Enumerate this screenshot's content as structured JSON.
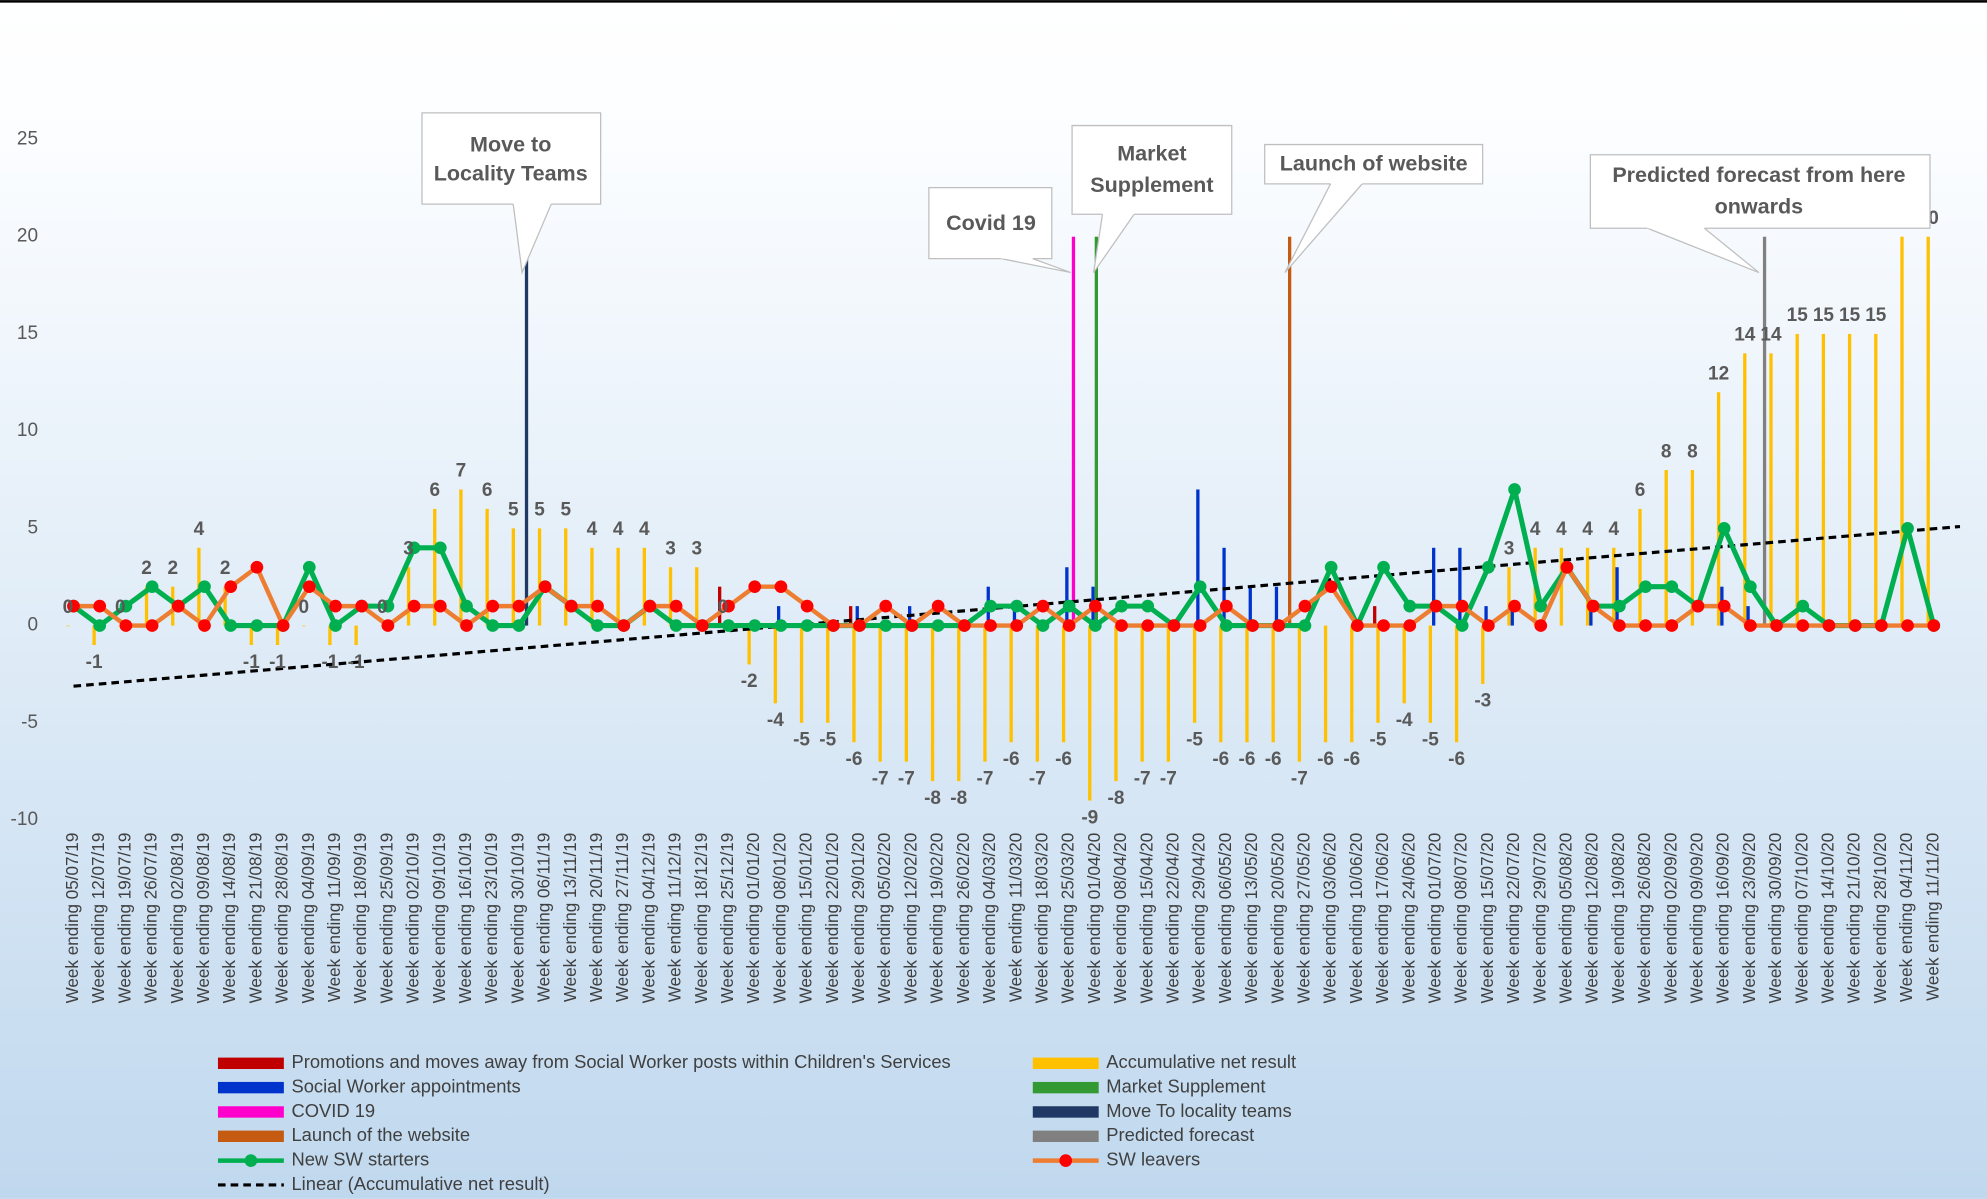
{
  "chart_data": {
    "type": "combo",
    "ylim": [
      -10,
      25
    ],
    "yticks": [
      -10,
      -5,
      0,
      5,
      10,
      15,
      20,
      25
    ],
    "grid": false,
    "categories": [
      "Week ending 05/07/19",
      "Week ending 12/07/19",
      "Week ending 19/07/19",
      "Week ending 26/07/19",
      "Week ending 02/08/19",
      "Week ending 09/08/19",
      "Week ending 14/08/19",
      "Week ending 21/08/19",
      "Week ending 28/08/19",
      "Week ending 04/09/19",
      "Week ending 11/09/19",
      "Week ending 18/09/19",
      "Week ending 25/09/19",
      "Week ending 02/10/19",
      "Week ending 09/10/19",
      "Week ending 16/10/19",
      "Week ending 23/10/19",
      "Week ending 30/10/19",
      "Week ending 06/11/19",
      "Week ending 13/11/19",
      "Week ending 20/11/19",
      "Week ending 27/11/19",
      "Week ending 04/12/19",
      "Week ending 11/12/19",
      "Week ending 18/12/19",
      "Week ending 25/12/19",
      "Week ending 01/01/20",
      "Week ending 08/01/20",
      "Week ending 15/01/20",
      "Week ending 22/01/20",
      "Week ending 29/01/20",
      "Week ending 05/02/20",
      "Week ending 12/02/20",
      "Week ending 19/02/20",
      "Week ending 26/02/20",
      "Week ending 04/03/20",
      "Week ending 11/03/20",
      "Week ending 18/03/20",
      "Week ending 25/03/20",
      "Week ending 01/04/20",
      "Week ending 08/04/20",
      "Week ending 15/04/20",
      "Week ending 22/04/20",
      "Week ending 29/04/20",
      "Week ending 06/05/20",
      "Week ending 13/05/20",
      "Week ending 20/05/20",
      "Week ending 27/05/20",
      "Week ending 03/06/20",
      "Week ending 10/06/20",
      "Week ending 17/06/20",
      "Week ending 24/06/20",
      "Week ending 01/07/20",
      "Week ending 08/07/20",
      "Week ending 15/07/20",
      "Week ending 22/07/20",
      "Week ending 29/07/20",
      "Week ending 05/08/20",
      "Week ending 12/08/20",
      "Week ending 19/08/20",
      "Week ending 26/08/20",
      "Week ending 02/09/20",
      "Week ending 09/09/20",
      "Week ending 16/09/20",
      "Week ending 23/09/20",
      "Week ending 30/09/20",
      "Week ending 07/10/20",
      "Week ending 14/10/20",
      "Week ending 21/10/20",
      "Week ending 28/10/20",
      "Week ending 04/11/20",
      "Week ending 11/11/20"
    ],
    "series": [
      {
        "name": "Promotions and moves away from Social Worker posts within Children's Services",
        "type": "bar",
        "color": "#c00000",
        "values": [
          null,
          null,
          null,
          null,
          null,
          null,
          null,
          null,
          null,
          null,
          null,
          null,
          null,
          null,
          null,
          null,
          null,
          null,
          null,
          null,
          null,
          null,
          null,
          null,
          null,
          2,
          null,
          null,
          null,
          null,
          1,
          null,
          null,
          null,
          null,
          null,
          null,
          null,
          null,
          null,
          null,
          null,
          null,
          null,
          null,
          null,
          null,
          null,
          null,
          null,
          1,
          null,
          null,
          null,
          null,
          null,
          null,
          null,
          null,
          null,
          null,
          null,
          null,
          null,
          null,
          null,
          null,
          null,
          null,
          null,
          null,
          null
        ]
      },
      {
        "name": "Accumulative net result",
        "type": "bar",
        "color": "#ffc000",
        "data_labels": true,
        "values": [
          0,
          -1,
          0,
          2,
          2,
          4,
          2,
          -1,
          -1,
          0,
          -1,
          -1,
          0,
          3,
          6,
          7,
          6,
          5,
          5,
          5,
          4,
          4,
          4,
          3,
          3,
          0,
          -2,
          -4,
          -5,
          -5,
          -6,
          -7,
          -7,
          -8,
          -8,
          -7,
          -6,
          -7,
          -6,
          -9,
          -8,
          -7,
          -7,
          -5,
          -6,
          -6,
          -6,
          -7,
          -6,
          -6,
          -5,
          -4,
          -5,
          -6,
          -3,
          3,
          4,
          4,
          4,
          4,
          6,
          8,
          8,
          12,
          14,
          14,
          15,
          15,
          15,
          15,
          20,
          20
        ]
      },
      {
        "name": "Social Worker appointments",
        "type": "bar",
        "color": "#0033cc",
        "values": [
          null,
          null,
          null,
          null,
          null,
          null,
          null,
          null,
          null,
          null,
          null,
          null,
          null,
          null,
          null,
          null,
          null,
          null,
          null,
          null,
          null,
          null,
          null,
          null,
          null,
          null,
          null,
          1,
          null,
          null,
          1,
          null,
          1,
          null,
          null,
          2,
          1,
          null,
          3,
          2,
          null,
          null,
          null,
          7,
          4,
          2,
          2,
          null,
          null,
          null,
          null,
          null,
          4,
          4,
          1,
          1,
          null,
          null,
          1,
          3,
          null,
          null,
          null,
          2,
          1,
          null,
          null,
          null,
          null,
          null,
          null,
          null
        ]
      },
      {
        "name": "Market Supplement",
        "type": "bar",
        "color": "#339933",
        "values": [
          null,
          null,
          null,
          null,
          null,
          null,
          null,
          null,
          null,
          null,
          null,
          null,
          null,
          null,
          null,
          null,
          null,
          null,
          null,
          null,
          null,
          null,
          null,
          null,
          null,
          null,
          null,
          null,
          null,
          null,
          null,
          null,
          null,
          null,
          null,
          null,
          null,
          null,
          null,
          20,
          null,
          null,
          null,
          null,
          null,
          null,
          null,
          null,
          null,
          null,
          null,
          null,
          null,
          null,
          null,
          null,
          null,
          null,
          null,
          null,
          null,
          null,
          null,
          null,
          null,
          null,
          null,
          null,
          null,
          null,
          null,
          null
        ]
      },
      {
        "name": "COVID 19",
        "type": "bar",
        "color": "#ff00cc",
        "values": [
          null,
          null,
          null,
          null,
          null,
          null,
          null,
          null,
          null,
          null,
          null,
          null,
          null,
          null,
          null,
          null,
          null,
          null,
          null,
          null,
          null,
          null,
          null,
          null,
          null,
          null,
          null,
          null,
          null,
          null,
          null,
          null,
          null,
          null,
          null,
          null,
          null,
          null,
          20,
          null,
          null,
          null,
          null,
          null,
          null,
          null,
          null,
          null,
          null,
          null,
          null,
          null,
          null,
          null,
          null,
          null,
          null,
          null,
          null,
          null,
          null,
          null,
          null,
          null,
          null,
          null,
          null,
          null,
          null,
          null,
          null,
          null
        ]
      },
      {
        "name": "Move To locality teams",
        "type": "bar",
        "color": "#1f3864",
        "values": [
          null,
          null,
          null,
          null,
          null,
          null,
          null,
          null,
          null,
          null,
          null,
          null,
          null,
          null,
          null,
          null,
          null,
          20,
          null,
          null,
          null,
          null,
          null,
          null,
          null,
          null,
          null,
          null,
          null,
          null,
          null,
          null,
          null,
          null,
          null,
          null,
          null,
          null,
          null,
          null,
          null,
          null,
          null,
          null,
          null,
          null,
          null,
          null,
          null,
          null,
          null,
          null,
          null,
          null,
          null,
          null,
          null,
          null,
          null,
          null,
          null,
          null,
          null,
          null,
          null,
          null,
          null,
          null,
          null,
          null,
          null,
          null
        ]
      },
      {
        "name": "Launch of the website",
        "type": "bar",
        "color": "#c55a11",
        "values": [
          null,
          null,
          null,
          null,
          null,
          null,
          null,
          null,
          null,
          null,
          null,
          null,
          null,
          null,
          null,
          null,
          null,
          null,
          null,
          null,
          null,
          null,
          null,
          null,
          null,
          null,
          null,
          null,
          null,
          null,
          null,
          null,
          null,
          null,
          null,
          null,
          null,
          null,
          null,
          null,
          null,
          null,
          null,
          null,
          null,
          null,
          20,
          null,
          null,
          null,
          null,
          null,
          null,
          null,
          null,
          null,
          null,
          null,
          null,
          null,
          null,
          null,
          null,
          null,
          null,
          null,
          null,
          null,
          null,
          null,
          null,
          null
        ]
      },
      {
        "name": "Predicted forecast",
        "type": "bar",
        "color": "#808080",
        "values": [
          null,
          null,
          null,
          null,
          null,
          null,
          null,
          null,
          null,
          null,
          null,
          null,
          null,
          null,
          null,
          null,
          null,
          null,
          null,
          null,
          null,
          null,
          null,
          null,
          null,
          null,
          null,
          null,
          null,
          null,
          null,
          null,
          null,
          null,
          null,
          null,
          null,
          null,
          null,
          null,
          null,
          null,
          null,
          null,
          null,
          null,
          null,
          null,
          null,
          null,
          null,
          null,
          null,
          null,
          null,
          null,
          null,
          null,
          null,
          null,
          null,
          null,
          null,
          null,
          20,
          null,
          null,
          null,
          null,
          null,
          null,
          null
        ]
      },
      {
        "name": "New SW starters",
        "type": "line",
        "color": "#00b050",
        "marker_color": "#00b050",
        "values": [
          1,
          0,
          1,
          2,
          1,
          2,
          0,
          0,
          0,
          3,
          0,
          1,
          1,
          4,
          4,
          1,
          0,
          0,
          2,
          1,
          0,
          0,
          1,
          0,
          0,
          0,
          0,
          0,
          0,
          0,
          0,
          0,
          0,
          0,
          0,
          1,
          1,
          0,
          1,
          0,
          1,
          1,
          0,
          2,
          0,
          0,
          0,
          0,
          3,
          0,
          3,
          1,
          1,
          0,
          3,
          7,
          1,
          3,
          1,
          1,
          2,
          2,
          1,
          5,
          2,
          0,
          1,
          0,
          0,
          0,
          5,
          0
        ]
      },
      {
        "name": "SW leavers",
        "type": "line",
        "color": "#ed7d31",
        "marker_color": "#ff0000",
        "values": [
          1,
          1,
          0,
          0,
          1,
          0,
          2,
          3,
          0,
          2,
          1,
          1,
          0,
          1,
          1,
          0,
          1,
          1,
          2,
          1,
          1,
          0,
          1,
          1,
          0,
          1,
          2,
          2,
          1,
          0,
          0,
          1,
          0,
          1,
          0,
          0,
          0,
          1,
          0,
          1,
          0,
          0,
          0,
          0,
          1,
          0,
          0,
          1,
          2,
          0,
          0,
          0,
          1,
          1,
          0,
          1,
          0,
          3,
          1,
          0,
          0,
          0,
          1,
          1,
          0,
          0,
          0,
          0,
          0,
          0,
          0,
          0
        ]
      }
    ],
    "trendline": {
      "name": "Linear (Accumulative net result)",
      "of_series": 1,
      "color": "#000000",
      "dash": true
    },
    "annotations": [
      {
        "lines": [
          "Move to",
          "Locality Teams"
        ]
      },
      {
        "lines": [
          "Covid 19"
        ]
      },
      {
        "lines": [
          "Market",
          "Supplement"
        ]
      },
      {
        "lines": [
          "Launch of website"
        ]
      },
      {
        "lines": [
          "Predicted forecast from here",
          "onwards"
        ]
      }
    ]
  }
}
